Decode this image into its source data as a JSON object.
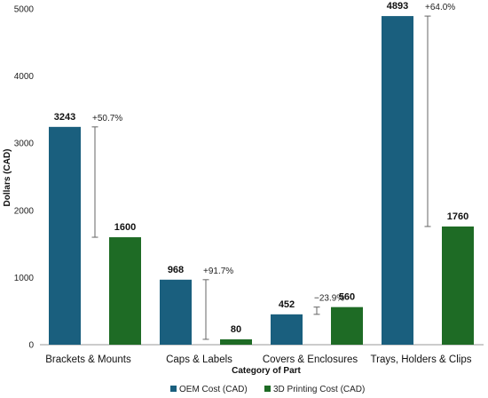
{
  "chart_data": {
    "type": "bar",
    "categories": [
      "Brackets & Mounts",
      "Caps & Labels",
      "Covers & Enclosures",
      "Trays, Holders & Clips"
    ],
    "series": [
      {
        "name": "OEM Cost (CAD)",
        "values": [
          3243,
          968,
          452,
          4893
        ],
        "color": "#1a5f7e"
      },
      {
        "name": "3D Printing Cost (CAD)",
        "values": [
          1600,
          80,
          560,
          1760
        ],
        "color": "#1e6b25"
      }
    ],
    "savings_labels": [
      "+50.7%",
      "+91.7%",
      "−23.9%",
      "+64.0%"
    ],
    "xlabel": "Category of Part",
    "ylabel": "Dollars (CAD)",
    "ylim": [
      0,
      5000
    ],
    "yticks": [
      0,
      1000,
      2000,
      3000,
      4000,
      5000
    ],
    "grid": false,
    "legend_position": "bottom"
  }
}
